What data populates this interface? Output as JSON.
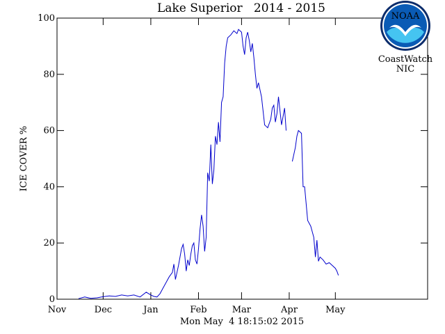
{
  "chart_data": {
    "type": "line",
    "title": "Lake Superior   2014 - 2015",
    "xlabel": "",
    "ylabel": "ICE COVER %",
    "ylim": [
      0,
      100
    ],
    "xlim": [
      "2014-11-01",
      "2015-06-30"
    ],
    "y_ticks": [
      0,
      20,
      40,
      60,
      80,
      100
    ],
    "x_ticks": [
      {
        "label": "Nov",
        "date": "2014-11-01"
      },
      {
        "label": "Dec",
        "date": "2014-12-01"
      },
      {
        "label": "Jan",
        "date": "2015-01-01"
      },
      {
        "label": "Feb",
        "date": "2015-02-01"
      },
      {
        "label": "Mar",
        "date": "2015-03-01"
      },
      {
        "label": "Apr",
        "date": "2015-04-01"
      },
      {
        "label": "May",
        "date": "2015-05-01"
      }
    ],
    "series_color": "#0000cc",
    "series": [
      {
        "segments": [
          [
            [
              "2014-11-15",
              0.2
            ],
            [
              "2014-11-19",
              0.8
            ],
            [
              "2014-11-23",
              0.3
            ],
            [
              "2014-11-27",
              0.5
            ],
            [
              "2014-12-01",
              0.9
            ],
            [
              "2014-12-05",
              1.2
            ],
            [
              "2014-12-09",
              1.0
            ],
            [
              "2014-12-13",
              1.5
            ],
            [
              "2014-12-17",
              1.2
            ],
            [
              "2014-12-21",
              1.5
            ],
            [
              "2014-12-25",
              0.8
            ],
            [
              "2014-12-29",
              2.5
            ],
            [
              "2015-01-01",
              1.5
            ],
            [
              "2015-01-03",
              1.0
            ],
            [
              "2015-01-05",
              0.8
            ],
            [
              "2015-01-07",
              2.0
            ],
            [
              "2015-01-09",
              4.0
            ],
            [
              "2015-01-11",
              6.0
            ],
            [
              "2015-01-13",
              8.0
            ],
            [
              "2015-01-15",
              9.5
            ],
            [
              "2015-01-16",
              12.5
            ],
            [
              "2015-01-17",
              7.0
            ],
            [
              "2015-01-19",
              12.0
            ],
            [
              "2015-01-20",
              15.0
            ],
            [
              "2015-01-21",
              18.0
            ],
            [
              "2015-01-22",
              19.5
            ],
            [
              "2015-01-23",
              16.0
            ],
            [
              "2015-01-24",
              10.0
            ],
            [
              "2015-01-25",
              14.0
            ],
            [
              "2015-01-26",
              12.0
            ],
            [
              "2015-01-27",
              16.0
            ],
            [
              "2015-01-28",
              19.0
            ],
            [
              "2015-01-29",
              20.0
            ],
            [
              "2015-01-30",
              14.0
            ],
            [
              "2015-01-31",
              12.5
            ],
            [
              "2015-02-01",
              18.0
            ],
            [
              "2015-02-02",
              25.0
            ],
            [
              "2015-02-03",
              30.0
            ],
            [
              "2015-02-04",
              26.0
            ],
            [
              "2015-02-05",
              17.0
            ],
            [
              "2015-02-06",
              22.0
            ],
            [
              "2015-02-07",
              45.0
            ],
            [
              "2015-02-08",
              42.0
            ],
            [
              "2015-02-09",
              55.0
            ],
            [
              "2015-02-10",
              41.0
            ],
            [
              "2015-02-11",
              46.0
            ],
            [
              "2015-02-12",
              58.0
            ],
            [
              "2015-02-13",
              55.0
            ],
            [
              "2015-02-14",
              63.0
            ],
            [
              "2015-02-15",
              56.0
            ],
            [
              "2015-02-16",
              70.0
            ],
            [
              "2015-02-17",
              72.0
            ],
            [
              "2015-02-18",
              84.0
            ],
            [
              "2015-02-19",
              90.0
            ],
            [
              "2015-02-20",
              93.0
            ],
            [
              "2015-02-22",
              94.0
            ],
            [
              "2015-02-24",
              95.5
            ],
            [
              "2015-02-26",
              94.5
            ],
            [
              "2015-02-27",
              96.0
            ],
            [
              "2015-03-01",
              95.0
            ],
            [
              "2015-03-02",
              90.0
            ],
            [
              "2015-03-03",
              87.0
            ],
            [
              "2015-03-04",
              93.0
            ],
            [
              "2015-03-05",
              95.0
            ],
            [
              "2015-03-06",
              92.0
            ],
            [
              "2015-03-07",
              88.0
            ],
            [
              "2015-03-08",
              91.0
            ],
            [
              "2015-03-09",
              86.0
            ],
            [
              "2015-03-10",
              80.0
            ],
            [
              "2015-03-11",
              75.0
            ],
            [
              "2015-03-12",
              77.0
            ],
            [
              "2015-03-14",
              72.0
            ],
            [
              "2015-03-16",
              62.0
            ],
            [
              "2015-03-18",
              61.0
            ],
            [
              "2015-03-20",
              64.0
            ],
            [
              "2015-03-21",
              68.0
            ],
            [
              "2015-03-22",
              69.0
            ],
            [
              "2015-03-23",
              63.0
            ],
            [
              "2015-03-24",
              66.0
            ],
            [
              "2015-03-25",
              72.0
            ],
            [
              "2015-03-27",
              62.0
            ],
            [
              "2015-03-29",
              68.0
            ],
            [
              "2015-03-30",
              60.0
            ]
          ],
          [
            [
              "2015-04-03",
              49.0
            ],
            [
              "2015-04-05",
              54.0
            ],
            [
              "2015-04-06",
              58.0
            ],
            [
              "2015-04-07",
              60.0
            ],
            [
              "2015-04-09",
              59.0
            ],
            [
              "2015-04-10",
              40.0
            ],
            [
              "2015-04-11",
              40.0
            ],
            [
              "2015-04-13",
              28.0
            ],
            [
              "2015-04-15",
              26.0
            ],
            [
              "2015-04-17",
              22.0
            ],
            [
              "2015-04-18",
              15.0
            ],
            [
              "2015-04-19",
              21.0
            ],
            [
              "2015-04-20",
              13.5
            ],
            [
              "2015-04-21",
              15.0
            ],
            [
              "2015-04-23",
              14.0
            ],
            [
              "2015-04-25",
              12.5
            ],
            [
              "2015-04-27",
              13.0
            ],
            [
              "2015-04-29",
              12.0
            ],
            [
              "2015-05-01",
              11.0
            ],
            [
              "2015-05-02",
              10.0
            ],
            [
              "2015-05-03",
              8.5
            ]
          ]
        ]
      }
    ]
  },
  "footer_timestamp": "Mon May  4 18:15:02 2015",
  "logo": {
    "emblem_text": "NOAA",
    "line1": "CoastWatch",
    "line2": "NIC",
    "colors": {
      "ring": "#0b2c6b",
      "outer": "#0a5bb5",
      "inner": "#45c4f1",
      "bird": "#ffffff"
    }
  }
}
